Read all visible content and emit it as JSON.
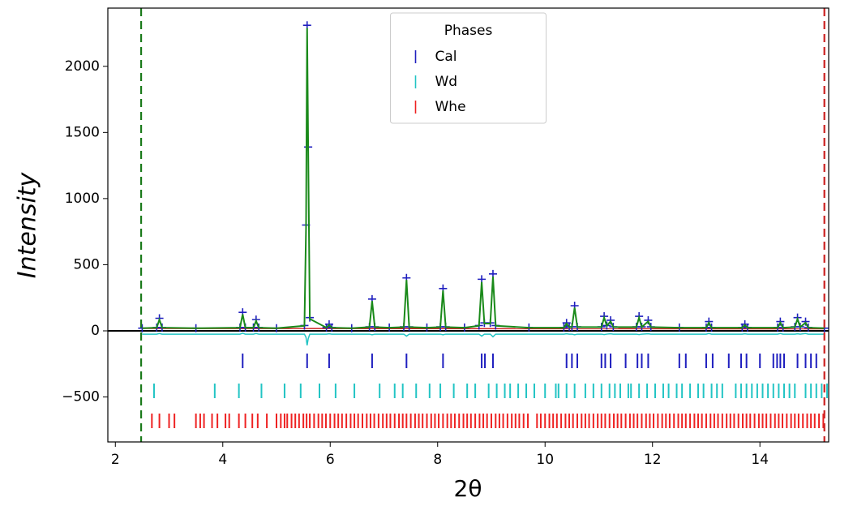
{
  "chart_data": {
    "type": "powder",
    "xlabel": "2θ",
    "ylabel": "Intensity",
    "xlim": [
      1.86,
      15.28
    ],
    "ylim": [
      -840,
      2440
    ],
    "xticks": [
      2,
      4,
      6,
      8,
      10,
      12,
      14
    ],
    "yticks": [
      {
        "value": -500,
        "label": "−500"
      },
      0,
      500,
      1000,
      1500,
      2000
    ],
    "zero_line": true,
    "x": [
      2.5,
      2.77,
      2.82,
      2.87,
      3.5,
      4.32,
      4.37,
      4.42,
      4.57,
      4.62,
      4.67,
      5.0,
      5.52,
      5.55,
      5.57,
      5.59,
      5.62,
      5.93,
      5.98,
      6.03,
      6.4,
      6.73,
      6.78,
      6.83,
      7.1,
      7.37,
      7.42,
      7.47,
      7.8,
      8.05,
      8.1,
      8.15,
      8.5,
      8.77,
      8.82,
      8.87,
      8.98,
      9.03,
      9.08,
      9.7,
      10.35,
      10.4,
      10.45,
      10.5,
      10.55,
      10.6,
      11.05,
      11.1,
      11.15,
      11.22,
      11.27,
      11.7,
      11.75,
      11.8,
      11.92,
      11.97,
      12.5,
      13.0,
      13.05,
      13.1,
      13.67,
      13.72,
      13.77,
      14.33,
      14.38,
      14.43,
      14.65,
      14.7,
      14.75,
      14.85,
      14.9,
      15.2
    ],
    "observed": {
      "color": "#1f1fbf",
      "values": [
        20,
        25,
        95,
        25,
        20,
        25,
        140,
        25,
        25,
        85,
        25,
        20,
        40,
        800,
        2310,
        1390,
        100,
        25,
        50,
        25,
        20,
        30,
        240,
        30,
        25,
        30,
        400,
        30,
        25,
        30,
        320,
        30,
        25,
        40,
        390,
        60,
        60,
        430,
        40,
        25,
        25,
        60,
        30,
        30,
        190,
        30,
        30,
        110,
        40,
        80,
        30,
        30,
        110,
        30,
        80,
        30,
        25,
        25,
        70,
        25,
        25,
        50,
        25,
        25,
        70,
        25,
        30,
        100,
        30,
        70,
        25,
        20
      ]
    },
    "calculated": {
      "color": "#1a8a1a",
      "values": [
        20,
        24,
        85,
        24,
        20,
        24,
        125,
        24,
        24,
        75,
        24,
        20,
        38,
        780,
        2290,
        1370,
        90,
        24,
        45,
        24,
        20,
        28,
        225,
        28,
        24,
        28,
        385,
        28,
        24,
        28,
        305,
        28,
        24,
        38,
        370,
        55,
        55,
        410,
        38,
        24,
        24,
        55,
        28,
        28,
        175,
        28,
        28,
        100,
        38,
        72,
        28,
        28,
        100,
        28,
        72,
        28,
        24,
        24,
        62,
        24,
        24,
        45,
        24,
        24,
        62,
        24,
        28,
        90,
        28,
        62,
        24,
        20
      ]
    },
    "difference": {
      "color": "#22c4c4",
      "values": [
        -25,
        -25,
        -20,
        -25,
        -25,
        -25,
        -18,
        -25,
        -25,
        -20,
        -25,
        -25,
        -25,
        -50,
        -110,
        -60,
        -25,
        -25,
        -22,
        -25,
        -25,
        -25,
        -30,
        -25,
        -25,
        -25,
        -40,
        -25,
        -25,
        -25,
        -30,
        -25,
        -25,
        -25,
        -40,
        -25,
        -25,
        -45,
        -25,
        -25,
        -25,
        -22,
        -25,
        -25,
        -30,
        -25,
        -25,
        -28,
        -25,
        -22,
        -25,
        -25,
        -28,
        -25,
        -22,
        -25,
        -25,
        -25,
        -20,
        -25,
        -25,
        -22,
        -25,
        -25,
        -20,
        -25,
        -25,
        -22,
        -25,
        -20,
        -25,
        -25
      ]
    },
    "background": {
      "color": "#cc2222",
      "x": [
        2.5,
        15.2
      ],
      "values": [
        18,
        15
      ]
    },
    "limits": [
      {
        "value": 2.48,
        "color": "#1a7a1a"
      },
      {
        "value": 15.2,
        "color": "#cc2222"
      }
    ],
    "legend": {
      "title": "Phases",
      "position": "upper center"
    },
    "phases": [
      {
        "name": "Cal",
        "color": "#1f1fbf",
        "positions": [
          4.37,
          5.57,
          5.98,
          6.78,
          7.42,
          8.1,
          8.82,
          8.88,
          9.03,
          10.4,
          10.5,
          10.6,
          11.05,
          11.12,
          11.22,
          11.5,
          11.72,
          11.8,
          11.92,
          12.5,
          12.62,
          13.0,
          13.12,
          13.42,
          13.65,
          13.75,
          14.0,
          14.25,
          14.32,
          14.38,
          14.45,
          14.7,
          14.85,
          14.95,
          15.05
        ]
      },
      {
        "name": "Wd",
        "color": "#22c4c4",
        "positions": [
          2.72,
          3.85,
          4.3,
          4.72,
          5.15,
          5.45,
          5.8,
          6.1,
          6.45,
          6.92,
          7.2,
          7.35,
          7.6,
          7.85,
          8.05,
          8.3,
          8.55,
          8.7,
          8.95,
          9.1,
          9.25,
          9.35,
          9.5,
          9.65,
          9.8,
          10.0,
          10.2,
          10.25,
          10.4,
          10.55,
          10.75,
          10.9,
          11.05,
          11.2,
          11.3,
          11.4,
          11.55,
          11.6,
          11.75,
          11.9,
          12.05,
          12.2,
          12.3,
          12.45,
          12.55,
          12.7,
          12.85,
          12.95,
          13.1,
          13.2,
          13.3,
          13.55,
          13.65,
          13.75,
          13.85,
          13.95,
          14.05,
          14.15,
          14.25,
          14.35,
          14.45,
          14.55,
          14.65,
          14.85,
          14.95,
          15.05,
          15.15,
          15.25
        ]
      },
      {
        "name": "Whe",
        "color": "#ee2222",
        "positions": [
          2.68,
          2.82,
          3.0,
          3.1,
          3.5,
          3.58,
          3.65,
          3.8,
          3.9,
          4.05,
          4.12,
          4.3,
          4.42,
          4.55,
          4.65,
          4.82,
          5.0,
          5.08,
          5.15,
          5.2,
          5.28,
          5.35,
          5.42,
          5.5,
          5.56,
          5.62,
          5.7,
          5.78,
          5.85,
          5.92,
          6.0,
          6.08,
          6.15,
          6.22,
          6.3,
          6.38,
          6.45,
          6.52,
          6.6,
          6.68,
          6.75,
          6.82,
          6.9,
          6.98,
          7.05,
          7.12,
          7.2,
          7.28,
          7.35,
          7.42,
          7.5,
          7.58,
          7.65,
          7.72,
          7.8,
          7.88,
          7.95,
          8.02,
          8.1,
          8.18,
          8.25,
          8.32,
          8.4,
          8.48,
          8.55,
          8.62,
          8.7,
          8.78,
          8.85,
          8.92,
          9.0,
          9.08,
          9.15,
          9.22,
          9.3,
          9.38,
          9.45,
          9.52,
          9.6,
          9.68,
          9.85,
          9.92,
          10.0,
          10.08,
          10.15,
          10.22,
          10.3,
          10.38,
          10.45,
          10.52,
          10.6,
          10.68,
          10.75,
          10.82,
          10.9,
          10.98,
          11.05,
          11.12,
          11.2,
          11.28,
          11.35,
          11.42,
          11.5,
          11.58,
          11.65,
          11.72,
          11.8,
          11.88,
          11.95,
          12.02,
          12.1,
          12.18,
          12.25,
          12.32,
          12.4,
          12.48,
          12.55,
          12.62,
          12.7,
          12.78,
          12.85,
          12.92,
          13.0,
          13.08,
          13.15,
          13.22,
          13.3,
          13.38,
          13.45,
          13.52,
          13.6,
          13.68,
          13.75,
          13.82,
          13.9,
          13.98,
          14.05,
          14.12,
          14.2,
          14.28,
          14.35,
          14.42,
          14.5,
          14.58,
          14.65,
          14.72,
          14.8,
          14.88,
          14.95,
          15.02,
          15.1,
          15.18
        ]
      }
    ]
  }
}
